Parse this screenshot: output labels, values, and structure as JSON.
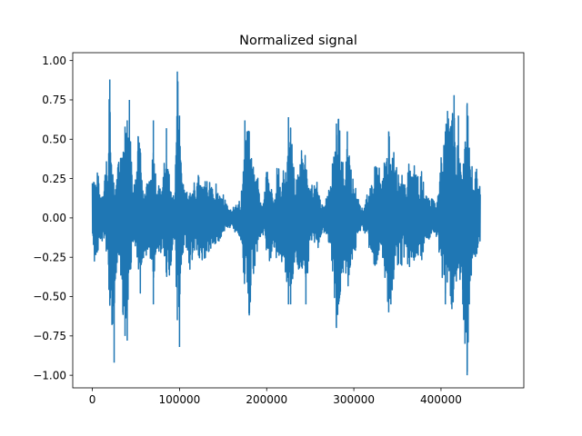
{
  "chart_data": {
    "type": "line",
    "title": "Normalized signal",
    "xlabel": "",
    "ylabel": "",
    "xlim": [
      -22500,
      495000
    ],
    "ylim": [
      -1.08,
      1.05
    ],
    "x_ticks": [
      0,
      100000,
      200000,
      300000,
      400000
    ],
    "x_tick_labels": [
      "0",
      "100000",
      "200000",
      "300000",
      "400000"
    ],
    "y_ticks": [
      -1.0,
      -0.75,
      -0.5,
      -0.25,
      0.0,
      0.25,
      0.5,
      0.75,
      1.0
    ],
    "y_tick_labels": [
      "−1.00",
      "−0.75",
      "−0.50",
      "−0.25",
      "0.00",
      "0.25",
      "0.50",
      "0.75",
      "1.00"
    ],
    "grid": false,
    "series": [
      {
        "color": "#1f77b4",
        "sample_step": 2500,
        "x_start": 0,
        "max": [
          0.22,
          0.32,
          0.3,
          0.25,
          0.18,
          0.12,
          0.3,
          0.42,
          0.88,
          0.4,
          0.22,
          0.25,
          0.35,
          0.38,
          0.38,
          0.58,
          0.62,
          0.75,
          0.4,
          0.2,
          0.25,
          0.52,
          0.43,
          0.28,
          0.18,
          0.27,
          0.28,
          0.3,
          0.62,
          0.28,
          0.18,
          0.23,
          0.23,
          0.35,
          0.57,
          0.35,
          0.22,
          0.15,
          0.2,
          0.93,
          0.65,
          0.3,
          0.18,
          0.15,
          0.18,
          0.22,
          0.2,
          0.23,
          0.3,
          0.25,
          0.18,
          0.23,
          0.28,
          0.25,
          0.22,
          0.18,
          0.2,
          0.22,
          0.22,
          0.14,
          0.15,
          0.11,
          0.09,
          0.06,
          0.06,
          0.07,
          0.1,
          0.12,
          0.13,
          0.22,
          0.62,
          0.55,
          0.55,
          0.42,
          0.38,
          0.3,
          0.25,
          0.12,
          0.1,
          0.15,
          0.3,
          0.27,
          0.22,
          0.2,
          0.22,
          0.35,
          0.28,
          0.26,
          0.32,
          0.38,
          0.64,
          0.57,
          0.4,
          0.22,
          0.25,
          0.32,
          0.48,
          0.35,
          0.42,
          0.2,
          0.16,
          0.22,
          0.2,
          0.23,
          0.18,
          0.12,
          0.09,
          0.1,
          0.18,
          0.22,
          0.33,
          0.4,
          0.6,
          0.63,
          0.48,
          0.35,
          0.3,
          0.55,
          0.45,
          0.35,
          0.22,
          0.18,
          0.12,
          0.07,
          0.07,
          0.1,
          0.16,
          0.2,
          0.25,
          0.24,
          0.38,
          0.35,
          0.3,
          0.25,
          0.42,
          0.42,
          0.55,
          0.42,
          0.45,
          0.35,
          0.3,
          0.35,
          0.3,
          0.3,
          0.22,
          0.4,
          0.37,
          0.42,
          0.3,
          0.25,
          0.28,
          0.3,
          0.22,
          0.2,
          0.15,
          0.12,
          0.12,
          0.1,
          0.15,
          0.22,
          0.38,
          0.42,
          0.55,
          0.68,
          0.55,
          0.62,
          0.78,
          0.45,
          0.65,
          0.35,
          0.3,
          0.45,
          0.73,
          0.5,
          0.35,
          0.25,
          0.48,
          0.2,
          0.28
        ],
        "min": [
          -0.18,
          -0.28,
          -0.27,
          -0.22,
          -0.17,
          -0.12,
          -0.22,
          -0.3,
          -0.55,
          -0.68,
          -0.92,
          -0.32,
          -0.22,
          -0.45,
          -0.6,
          -0.75,
          -0.78,
          -0.45,
          -0.25,
          -0.18,
          -0.22,
          -0.35,
          -0.48,
          -0.3,
          -0.2,
          -0.25,
          -0.22,
          -0.28,
          -0.55,
          -0.4,
          -0.2,
          -0.22,
          -0.22,
          -0.3,
          -0.42,
          -0.4,
          -0.3,
          -0.18,
          -0.22,
          -0.65,
          -0.82,
          -0.35,
          -0.2,
          -0.18,
          -0.25,
          -0.35,
          -0.3,
          -0.22,
          -0.2,
          -0.25,
          -0.27,
          -0.26,
          -0.25,
          -0.22,
          -0.2,
          -0.18,
          -0.2,
          -0.2,
          -0.15,
          -0.12,
          -0.1,
          -0.07,
          -0.06,
          -0.06,
          -0.07,
          -0.08,
          -0.1,
          -0.12,
          -0.15,
          -0.28,
          -0.45,
          -0.5,
          -0.62,
          -0.45,
          -0.35,
          -0.27,
          -0.18,
          -0.12,
          -0.1,
          -0.12,
          -0.22,
          -0.28,
          -0.25,
          -0.22,
          -0.22,
          -0.3,
          -0.25,
          -0.28,
          -0.35,
          -0.45,
          -0.55,
          -0.55,
          -0.45,
          -0.3,
          -0.28,
          -0.35,
          -0.42,
          -0.35,
          -0.55,
          -0.3,
          -0.18,
          -0.18,
          -0.2,
          -0.2,
          -0.18,
          -0.12,
          -0.09,
          -0.1,
          -0.15,
          -0.2,
          -0.28,
          -0.48,
          -0.7,
          -0.55,
          -0.45,
          -0.35,
          -0.3,
          -0.45,
          -0.4,
          -0.35,
          -0.27,
          -0.18,
          -0.12,
          -0.08,
          -0.07,
          -0.09,
          -0.15,
          -0.22,
          -0.25,
          -0.25,
          -0.4,
          -0.35,
          -0.25,
          -0.22,
          -0.35,
          -0.45,
          -0.6,
          -0.55,
          -0.4,
          -0.35,
          -0.3,
          -0.28,
          -0.3,
          -0.25,
          -0.22,
          -0.32,
          -0.3,
          -0.3,
          -0.25,
          -0.22,
          -0.25,
          -0.28,
          -0.2,
          -0.18,
          -0.15,
          -0.12,
          -0.1,
          -0.1,
          -0.12,
          -0.2,
          -0.35,
          -0.4,
          -0.55,
          -0.45,
          -0.45,
          -0.58,
          -0.5,
          -0.4,
          -0.42,
          -0.45,
          -0.55,
          -0.8,
          -1.0,
          -0.55,
          -0.35,
          -0.22,
          -0.25,
          -0.3,
          -0.22
        ]
      }
    ]
  }
}
